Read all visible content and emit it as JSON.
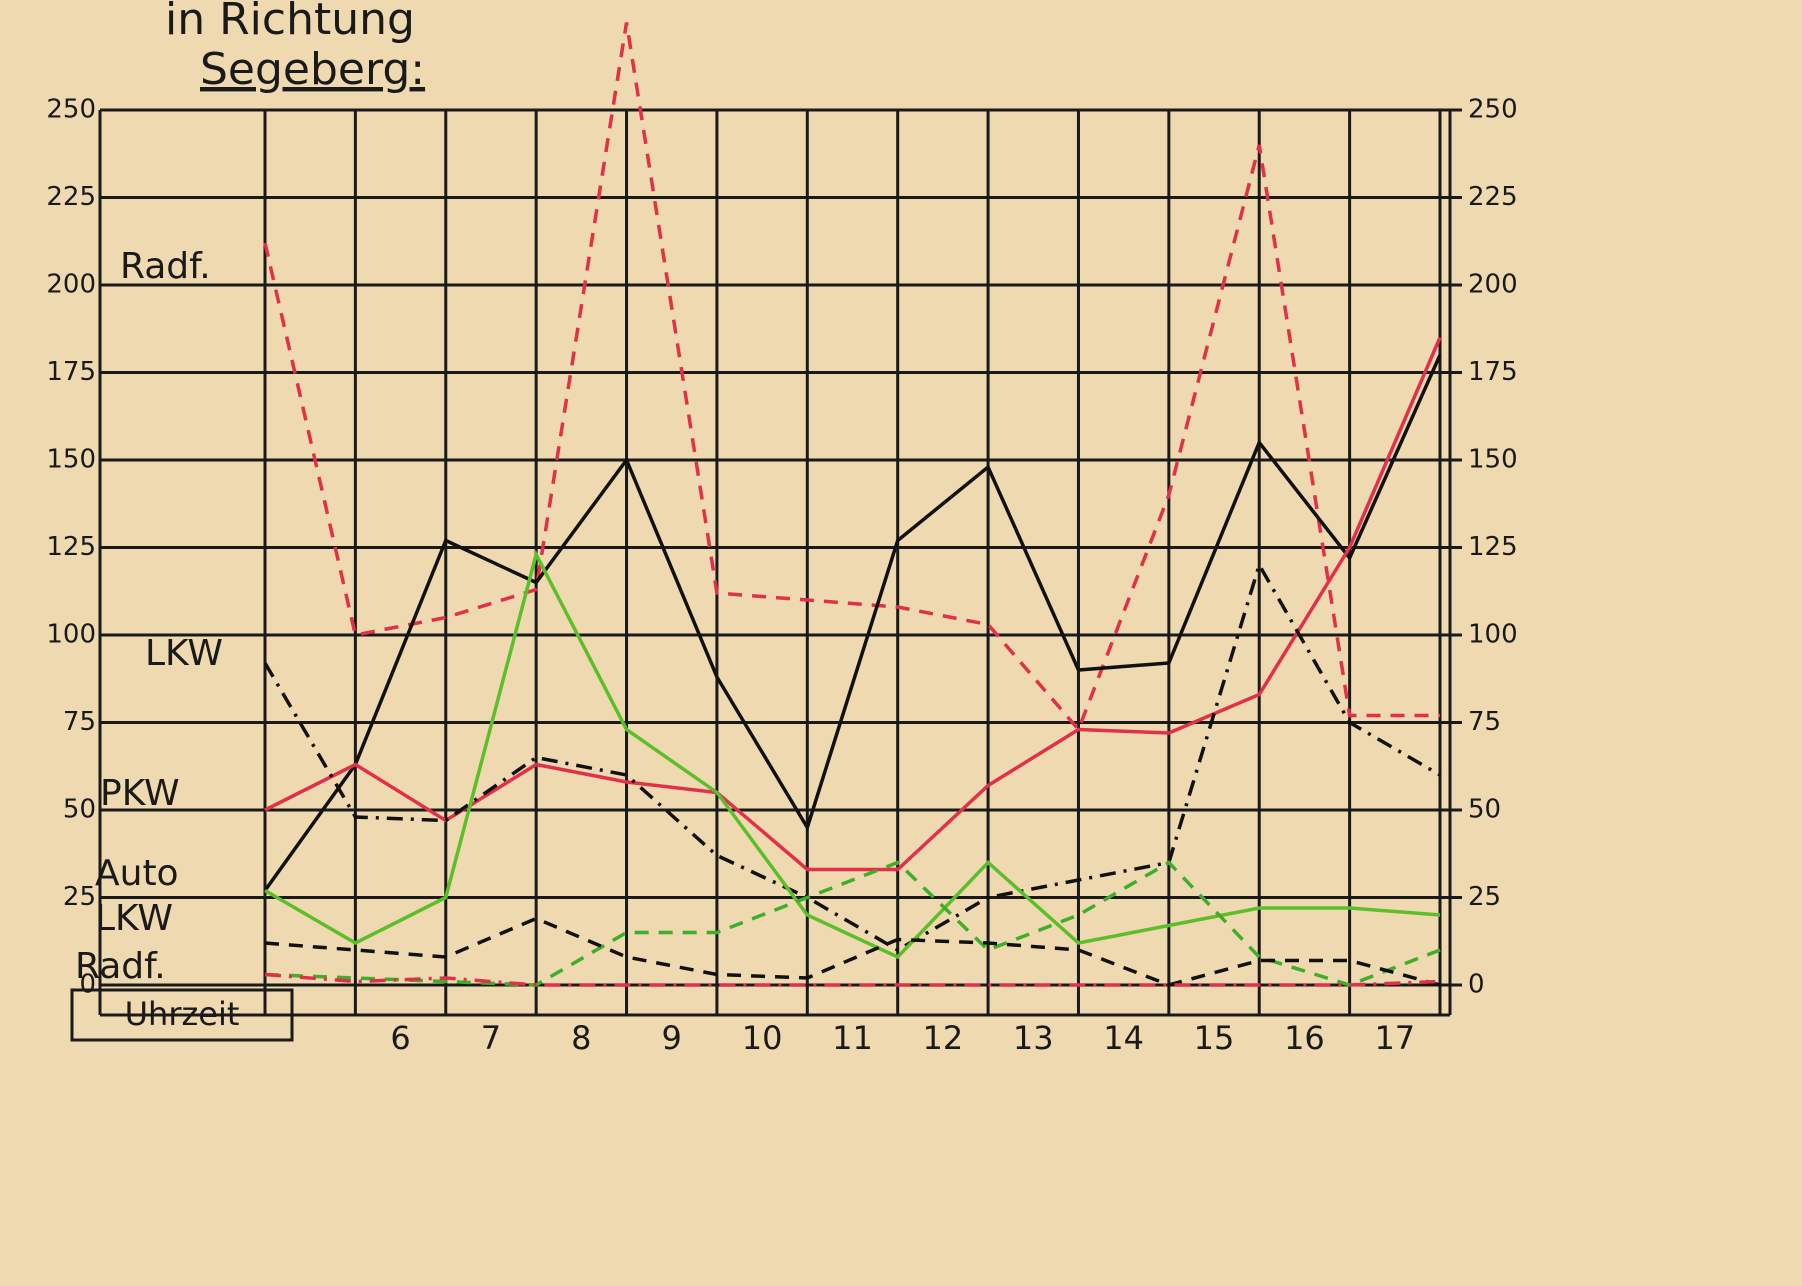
{
  "chart_data": {
    "type": "line",
    "title": "in Richtung",
    "subtitle": "Segeberg:",
    "xlabel": "Uhrzeit",
    "categories": [
      null,
      "6",
      "7",
      "8",
      "9",
      "10",
      "11",
      "12",
      "13",
      "14",
      "15",
      "16",
      "17",
      null
    ],
    "series": [
      {
        "name": "Radf.",
        "color": "#e0304a",
        "dash": "dashed",
        "values": [
          212,
          100,
          105,
          113,
          275,
          112,
          110,
          108,
          103,
          73,
          140,
          240,
          77,
          77
        ]
      },
      {
        "name": "LKW",
        "color": "#111111",
        "dash": "solid",
        "values": [
          27,
          63,
          127,
          115,
          150,
          88,
          45,
          127,
          148,
          90,
          92,
          155,
          122,
          180
        ]
      },
      {
        "name": "PKW",
        "color": "#e0304a",
        "dash": "solid",
        "values": [
          50,
          63,
          47,
          63,
          58,
          55,
          33,
          33,
          57,
          73,
          72,
          83,
          125,
          185
        ]
      },
      {
        "color": "#111111",
        "dash": "dashdot",
        "values": [
          92,
          48,
          47,
          65,
          60,
          37,
          25,
          10,
          25,
          30,
          35,
          120,
          75,
          60
        ]
      },
      {
        "name": "Auto",
        "color": "#5cbf2a",
        "dash": "solid",
        "values": [
          27,
          12,
          25,
          123,
          73,
          55,
          20,
          8,
          35,
          12,
          17,
          22,
          22,
          20
        ]
      },
      {
        "color": "#3fae2a",
        "dash": "dashed",
        "values": [
          3,
          2,
          1,
          0,
          15,
          15,
          25,
          35,
          10,
          20,
          35,
          8,
          0,
          10
        ]
      },
      {
        "name": "LKW",
        "color": "#111111",
        "dash": "dashed",
        "values": [
          12,
          10,
          8,
          19,
          8,
          3,
          2,
          13,
          12,
          10,
          0,
          7,
          7,
          0
        ]
      },
      {
        "name": "Radf.",
        "color": "#e0304a",
        "dash": "dashdot",
        "values": [
          3,
          1,
          2,
          0,
          0,
          0,
          0,
          0,
          0,
          0,
          0,
          0,
          0,
          1
        ]
      }
    ],
    "ylim": [
      0,
      250
    ],
    "yticks": [
      0,
      25,
      50,
      75,
      100,
      125,
      150,
      175,
      200,
      225,
      250
    ],
    "y2lim": [
      0,
      250
    ],
    "y2ticks": [
      0,
      25,
      50,
      75,
      100,
      125,
      150,
      175,
      200,
      225,
      250
    ],
    "grid": true
  }
}
